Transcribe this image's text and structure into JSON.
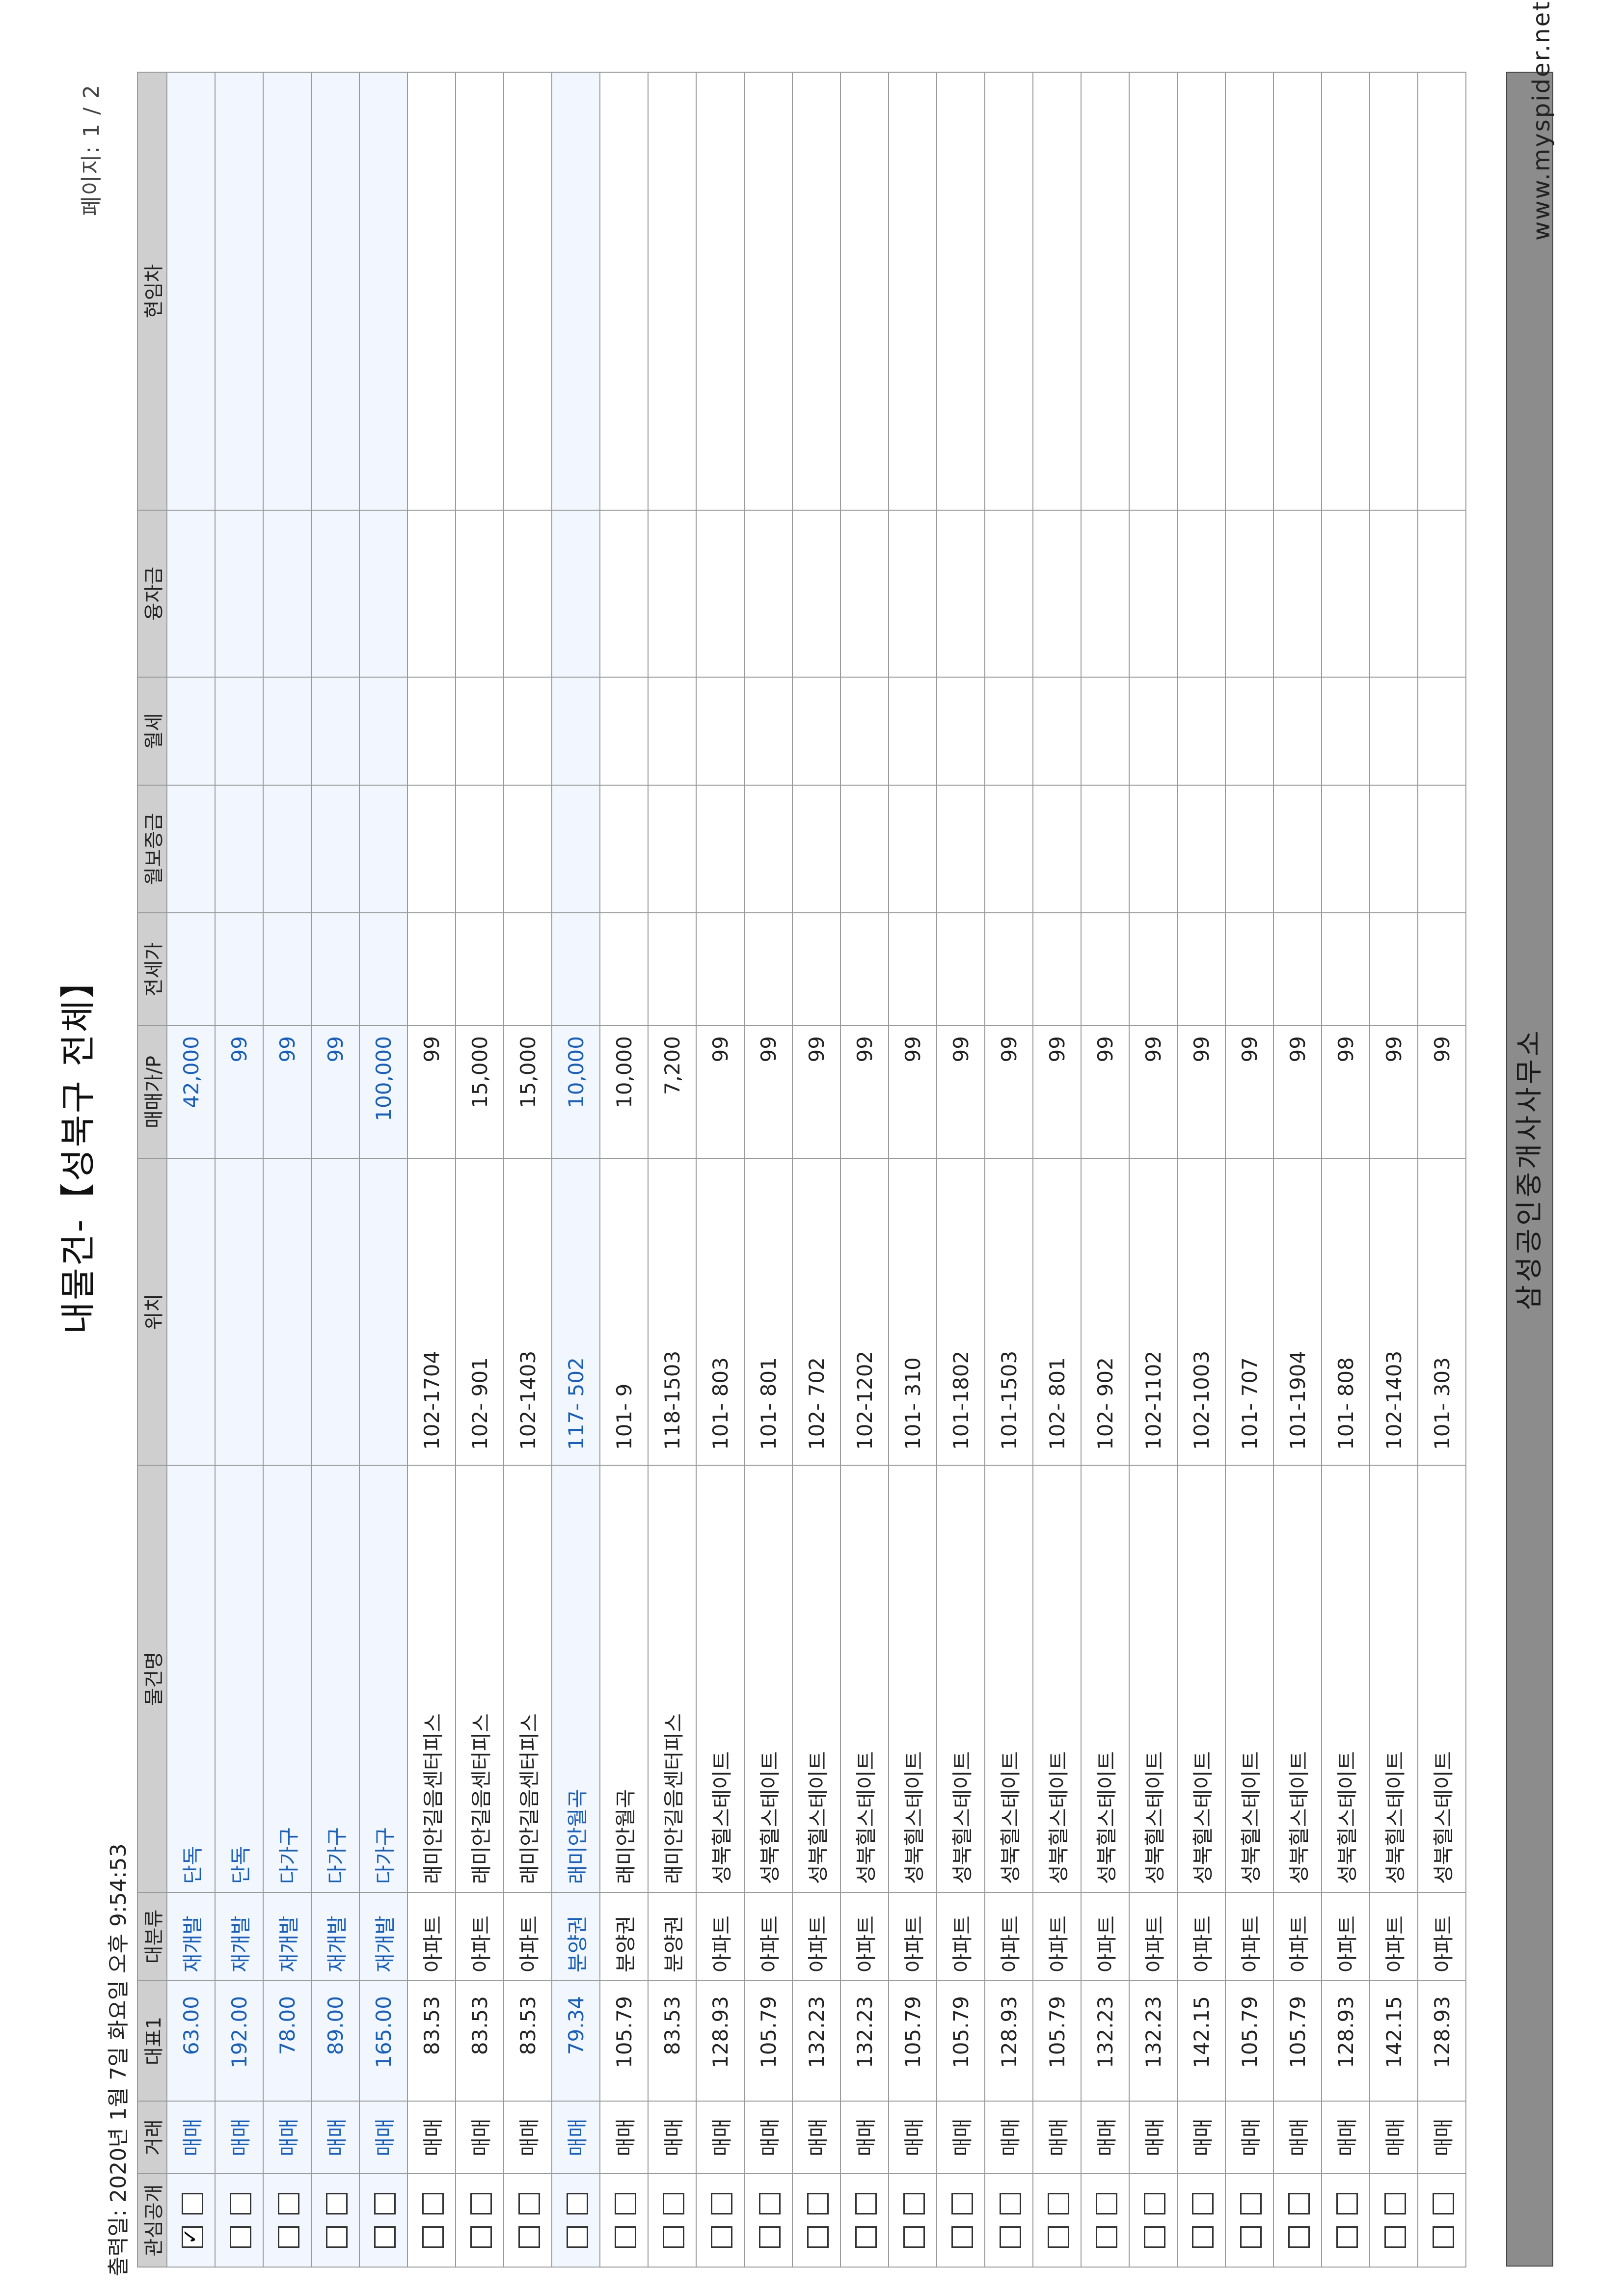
{
  "page": {
    "title": "내물건-【성북구 전체】",
    "print_date": "출력일: 2020년 1월 7일 화요일 오후 9:54:53",
    "page_number": "페이지: 1 / 2",
    "website": "www.myspider.net",
    "footer": "삼성공인중개사사무소"
  },
  "table": {
    "headers": [
      "관심공개",
      "거래",
      "대표1",
      "대분류",
      "물건명",
      "위치",
      "매매가/P",
      "전세가",
      "월보증금",
      "월세",
      "융자금",
      "현임차"
    ],
    "rows": [
      {
        "checked": true,
        "blue": true,
        "deal": "매매",
        "area": "63.00",
        "category": "재개발",
        "name": "단독",
        "location": "",
        "price": "42,000"
      },
      {
        "checked": false,
        "blue": true,
        "deal": "매매",
        "area": "192.00",
        "category": "재개발",
        "name": "단독",
        "location": "",
        "price": "99"
      },
      {
        "checked": false,
        "blue": true,
        "deal": "매매",
        "area": "78.00",
        "category": "재개발",
        "name": "다가구",
        "location": "",
        "price": "99"
      },
      {
        "checked": false,
        "blue": true,
        "deal": "매매",
        "area": "89.00",
        "category": "재개발",
        "name": "다가구",
        "location": "",
        "price": "99"
      },
      {
        "checked": false,
        "blue": true,
        "deal": "매매",
        "area": "165.00",
        "category": "재개발",
        "name": "다가구",
        "location": "",
        "price": "100,000"
      },
      {
        "checked": false,
        "blue": false,
        "deal": "매매",
        "area": "83.53",
        "category": "아파트",
        "name": "래미안길음센터피스",
        "location": "102-1704",
        "price": "99"
      },
      {
        "checked": false,
        "blue": false,
        "deal": "매매",
        "area": "83.53",
        "category": "아파트",
        "name": "래미안길음센터피스",
        "location": "102- 901",
        "price": "15,000"
      },
      {
        "checked": false,
        "blue": false,
        "deal": "매매",
        "area": "83.53",
        "category": "아파트",
        "name": "래미안길음센터피스",
        "location": "102-1403",
        "price": "15,000"
      },
      {
        "checked": false,
        "blue": true,
        "deal": "매매",
        "area": "79.34",
        "category": "분양권",
        "name": "래미안월곡",
        "location": "117- 502",
        "price": "10,000"
      },
      {
        "checked": false,
        "blue": false,
        "deal": "매매",
        "area": "105.79",
        "category": "분양권",
        "name": "래미안월곡",
        "location": "101-   9",
        "price": "10,000"
      },
      {
        "checked": false,
        "blue": false,
        "deal": "매매",
        "area": "83.53",
        "category": "분양권",
        "name": "래미안길음센터피스",
        "location": "118-1503",
        "price": "7,200"
      },
      {
        "checked": false,
        "blue": false,
        "deal": "매매",
        "area": "128.93",
        "category": "아파트",
        "name": "성북힐스테이트",
        "location": "101- 803",
        "price": "99"
      },
      {
        "checked": false,
        "blue": false,
        "deal": "매매",
        "area": "105.79",
        "category": "아파트",
        "name": "성북힐스테이트",
        "location": "101- 801",
        "price": "99"
      },
      {
        "checked": false,
        "blue": false,
        "deal": "매매",
        "area": "132.23",
        "category": "아파트",
        "name": "성북힐스테이트",
        "location": "102- 702",
        "price": "99"
      },
      {
        "checked": false,
        "blue": false,
        "deal": "매매",
        "area": "132.23",
        "category": "아파트",
        "name": "성북힐스테이트",
        "location": "102-1202",
        "price": "99"
      },
      {
        "checked": false,
        "blue": false,
        "deal": "매매",
        "area": "105.79",
        "category": "아파트",
        "name": "성북힐스테이트",
        "location": "101- 310",
        "price": "99"
      },
      {
        "checked": false,
        "blue": false,
        "deal": "매매",
        "area": "105.79",
        "category": "아파트",
        "name": "성북힐스테이트",
        "location": "101-1802",
        "price": "99"
      },
      {
        "checked": false,
        "blue": false,
        "deal": "매매",
        "area": "128.93",
        "category": "아파트",
        "name": "성북힐스테이트",
        "location": "101-1503",
        "price": "99"
      },
      {
        "checked": false,
        "blue": false,
        "deal": "매매",
        "area": "105.79",
        "category": "아파트",
        "name": "성북힐스테이트",
        "location": "102- 801",
        "price": "99"
      },
      {
        "checked": false,
        "blue": false,
        "deal": "매매",
        "area": "132.23",
        "category": "아파트",
        "name": "성북힐스테이트",
        "location": "102- 902",
        "price": "99"
      },
      {
        "checked": false,
        "blue": false,
        "deal": "매매",
        "area": "132.23",
        "category": "아파트",
        "name": "성북힐스테이트",
        "location": "102-1102",
        "price": "99"
      },
      {
        "checked": false,
        "blue": false,
        "deal": "매매",
        "area": "142.15",
        "category": "아파트",
        "name": "성북힐스테이트",
        "location": "102-1003",
        "price": "99"
      },
      {
        "checked": false,
        "blue": false,
        "deal": "매매",
        "area": "105.79",
        "category": "아파트",
        "name": "성북힐스테이트",
        "location": "101- 707",
        "price": "99"
      },
      {
        "checked": false,
        "blue": false,
        "deal": "매매",
        "area": "105.79",
        "category": "아파트",
        "name": "성북힐스테이트",
        "location": "101-1904",
        "price": "99"
      },
      {
        "checked": false,
        "blue": false,
        "deal": "매매",
        "area": "128.93",
        "category": "아파트",
        "name": "성북힐스테이트",
        "location": "101- 808",
        "price": "99"
      },
      {
        "checked": false,
        "blue": false,
        "deal": "매매",
        "area": "142.15",
        "category": "아파트",
        "name": "성북힐스테이트",
        "location": "102-1403",
        "price": "99"
      },
      {
        "checked": false,
        "blue": false,
        "deal": "매매",
        "area": "128.93",
        "category": "아파트",
        "name": "성북힐스테이트",
        "location": "101- 303",
        "price": "99"
      }
    ]
  },
  "colors": {
    "link_blue": "#1a5fb4",
    "header_gray": "#cfcfcf",
    "footer_gray": "#8c8c8c"
  }
}
